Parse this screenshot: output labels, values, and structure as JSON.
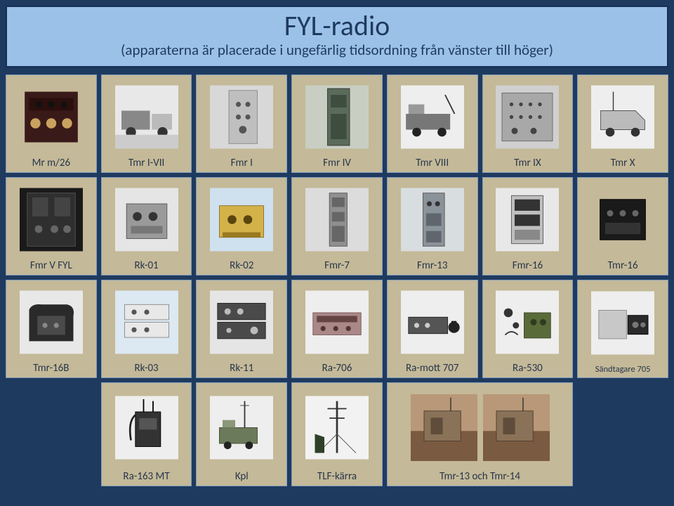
{
  "header": {
    "title": "FYL-radio",
    "subtitle": "(apparaterna är placerade i ungefärlig tidsordning från vänster till höger)"
  },
  "colors": {
    "page_bg": "#1f3a5f",
    "header_bg": "#9bc1e8",
    "header_border": "#163055",
    "card_bg": "#c4b998",
    "card_border": "#7c9cc0",
    "text": "#27364b"
  },
  "rows": [
    [
      {
        "label": "Mr m/26",
        "img": "panel-dark"
      },
      {
        "label": "Tmr I-VII",
        "img": "vehicle-bw"
      },
      {
        "label": "Fmr I",
        "img": "rack-bw"
      },
      {
        "label": "Fmr IV",
        "img": "rack-green"
      },
      {
        "label": "Tmr VIII",
        "img": "truck-bw"
      },
      {
        "label": "Tmr IX",
        "img": "rack-wide"
      },
      {
        "label": "Tmr X",
        "img": "van-bw"
      }
    ],
    [
      {
        "label": "Fmr V FYL",
        "img": "rack-dark"
      },
      {
        "label": "Rk-01",
        "img": "box-grey"
      },
      {
        "label": "Rk-02",
        "img": "box-gold"
      },
      {
        "label": "Fmr-7",
        "img": "rack-tall"
      },
      {
        "label": "Fmr-13",
        "img": "rack-tall2"
      },
      {
        "label": "Fmr-16",
        "img": "rack-open"
      },
      {
        "label": "Tmr-16",
        "img": "box-black"
      }
    ],
    [
      {
        "label": "Tmr-16B",
        "img": "bag-black"
      },
      {
        "label": "Rk-03",
        "img": "stack-white"
      },
      {
        "label": "Rk-11",
        "img": "stack-dark"
      },
      {
        "label": "Ra-706",
        "img": "box-wide"
      },
      {
        "label": "Ra-mott 707",
        "img": "box-low"
      },
      {
        "label": "Ra-530",
        "img": "kit-green"
      },
      {
        "label": "Sändtagare 705",
        "img": "box-small",
        "small": true
      }
    ]
  ],
  "row4": [
    {
      "label": "Ra-163 MT",
      "img": "manpack"
    },
    {
      "label": "Kpl",
      "img": "truck-ant"
    },
    {
      "label": "TLF-kärra",
      "img": "mast"
    },
    {
      "label": "Tmr-13 och Tmr-14",
      "img": "shelters",
      "wide": true
    }
  ]
}
